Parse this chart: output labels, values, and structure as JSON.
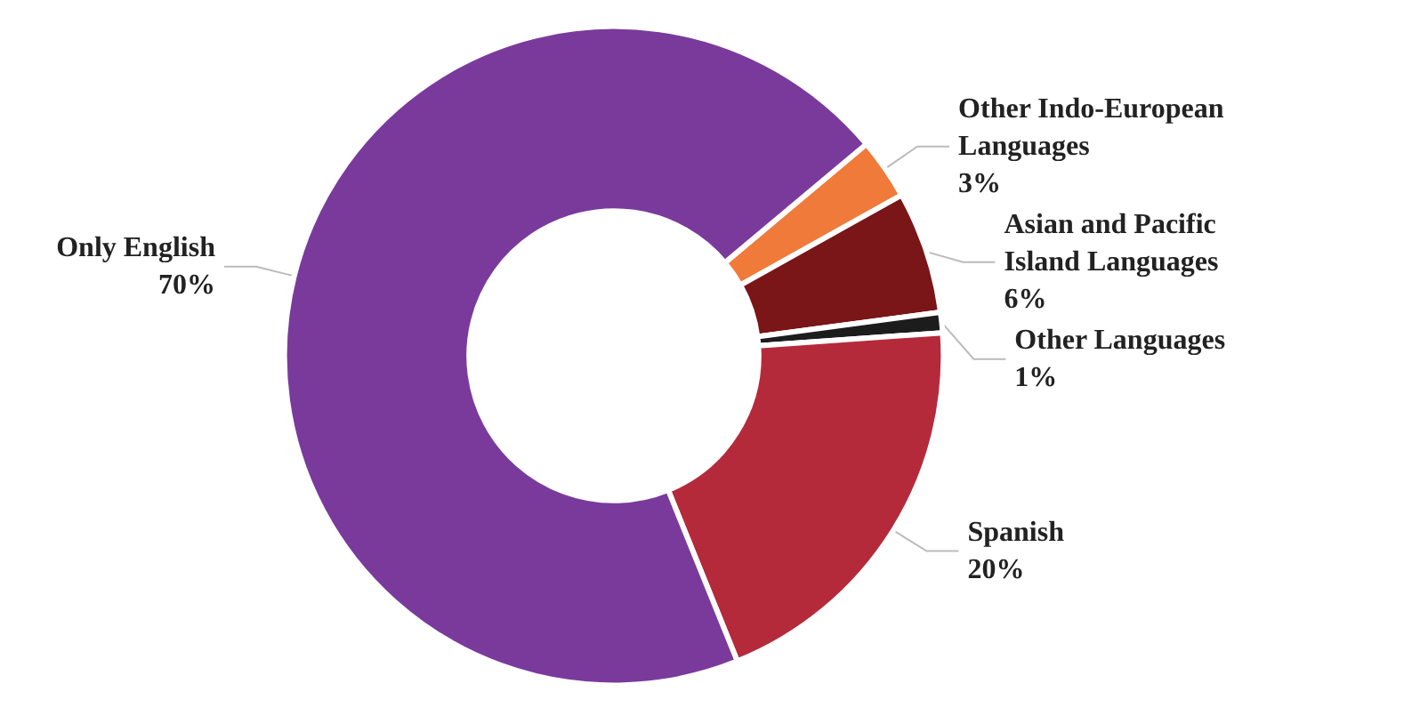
{
  "chart_data": {
    "type": "donut",
    "categories": [
      "Other Indo-European Languages",
      "Asian and Pacific Island Languages",
      "Other Languages",
      "Spanish",
      "Only English"
    ],
    "values": [
      3,
      6,
      1,
      20,
      70
    ],
    "colors": [
      "#f07a3a",
      "#7a1518",
      "#1c1c1c",
      "#b52a3a",
      "#7a3a9c"
    ],
    "value_labels": [
      "3%",
      "6%",
      "1%",
      "20%",
      "70%"
    ],
    "legend": false
  }
}
